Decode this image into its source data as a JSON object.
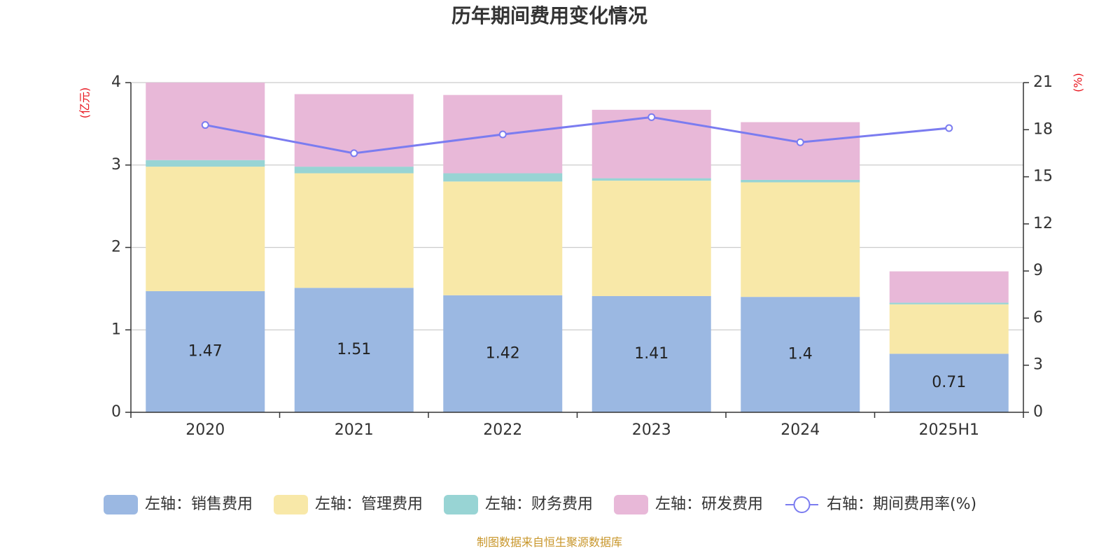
{
  "chart_data": {
    "type": "bar",
    "title": "历年期间费用变化情况",
    "left_unit": "(亿元)",
    "right_unit": "(%)",
    "categories": [
      "2020",
      "2021",
      "2022",
      "2023",
      "2024",
      "2025H1"
    ],
    "ylim_left": [
      0,
      4
    ],
    "yticks_left": [
      0,
      1,
      2,
      3,
      4
    ],
    "ylim_right": [
      0,
      21
    ],
    "yticks_right": [
      0,
      3,
      6,
      9,
      12,
      15,
      18,
      21
    ],
    "grid": true,
    "stacked": true,
    "legend_position": "bottom",
    "series": [
      {
        "name": "左轴：销售费用",
        "kind": "bar",
        "color": "#9bb8e2",
        "values": [
          1.47,
          1.51,
          1.42,
          1.41,
          1.4,
          0.71
        ],
        "labels": [
          "1.47",
          "1.51",
          "1.42",
          "1.41",
          "1.4",
          "0.71"
        ]
      },
      {
        "name": "左轴：管理费用",
        "kind": "bar",
        "color": "#f8e8a8",
        "values": [
          1.51,
          1.39,
          1.38,
          1.4,
          1.39,
          0.6
        ]
      },
      {
        "name": "左轴：财务费用",
        "kind": "bar",
        "color": "#98d4d4",
        "values": [
          0.08,
          0.08,
          0.1,
          0.03,
          0.03,
          0.02
        ]
      },
      {
        "name": "左轴：研发费用",
        "kind": "bar",
        "color": "#e8b8d8",
        "values": [
          0.94,
          0.88,
          0.95,
          0.83,
          0.7,
          0.38
        ]
      },
      {
        "name": "右轴：期间费用率(%)",
        "kind": "line",
        "color": "#7b7cf0",
        "values": [
          18.3,
          16.5,
          17.7,
          18.8,
          17.2,
          18.1
        ]
      }
    ]
  },
  "footer": {
    "source": "制图数据来自恒生聚源数据库"
  }
}
